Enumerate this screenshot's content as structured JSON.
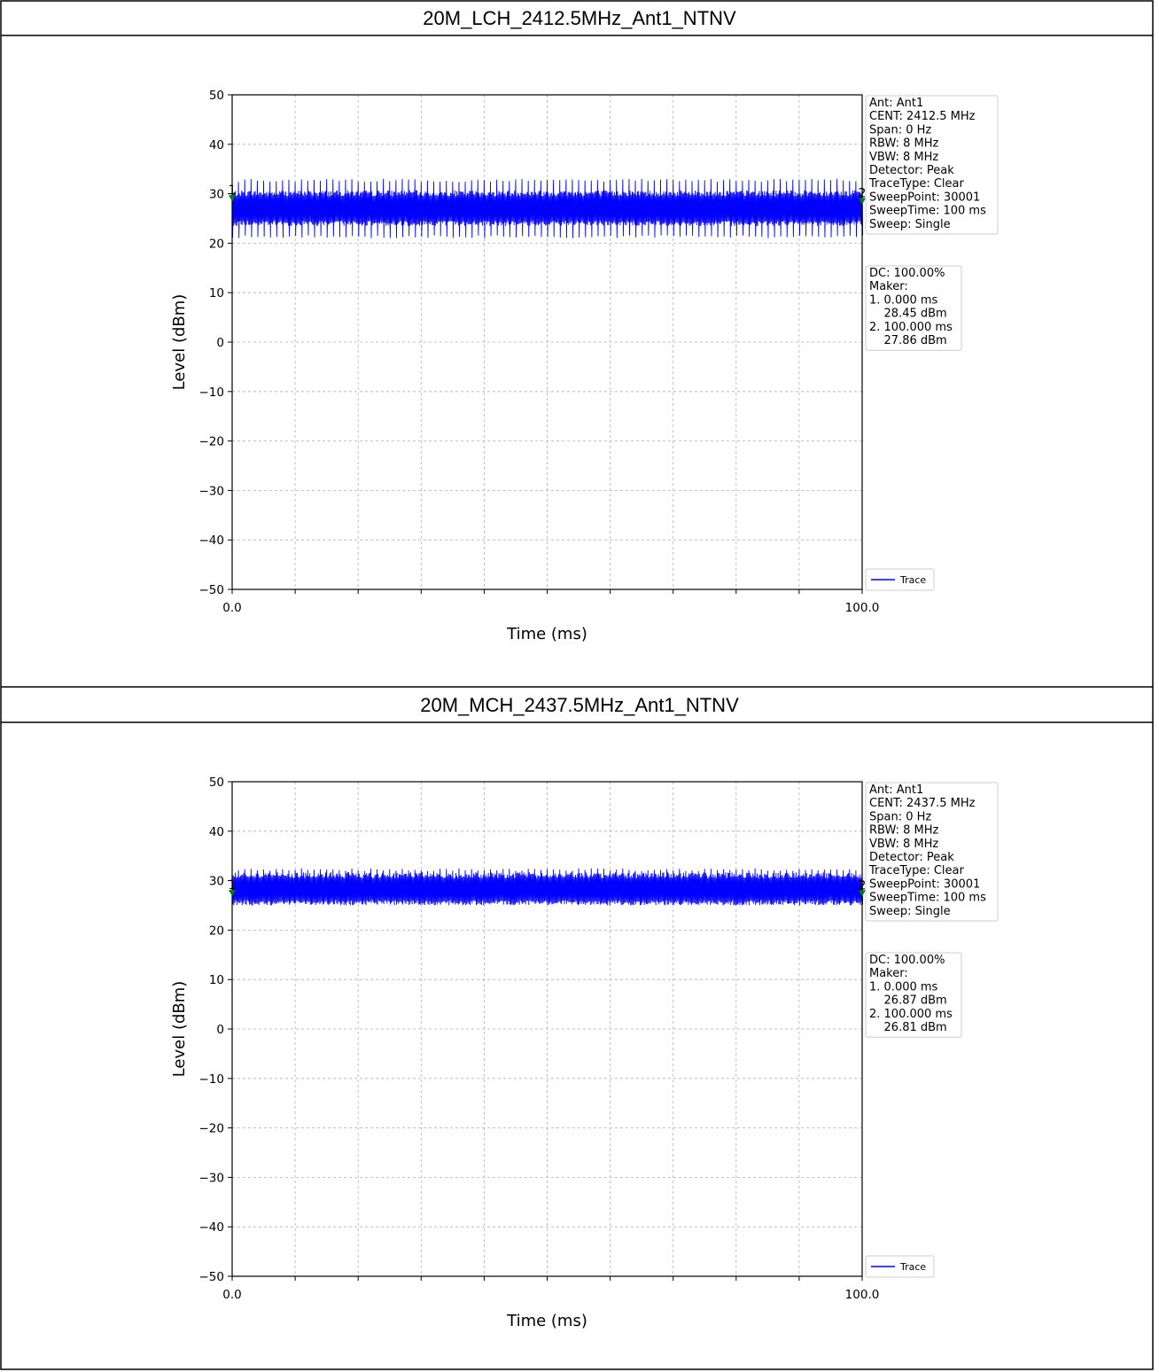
{
  "panels": [
    {
      "title": "20M_LCH_2412.5MHz_Ant1_NTNV"
    },
    {
      "title": "20M_MCH_2437.5MHz_Ant1_NTNV"
    }
  ],
  "colors": {
    "trace": "#0000ff",
    "marker": "#008000",
    "grid": "#b0b0b0"
  },
  "chart_data": [
    {
      "type": "line",
      "xlabel": "Time (ms)",
      "ylabel": "Level (dBm)",
      "xlim": [
        0.0,
        100.0
      ],
      "ylim": [
        -50,
        50
      ],
      "x_tick_labels": [
        "0.0",
        "100.0"
      ],
      "y_ticks": [
        50,
        40,
        30,
        20,
        10,
        0,
        -10,
        -20,
        -30,
        -40,
        -50
      ],
      "y_tick_labels": [
        "50",
        "40",
        "30",
        "20",
        "10",
        "0",
        "−10",
        "−20",
        "−30",
        "−40",
        "−50"
      ],
      "grid": true,
      "series": [
        {
          "name": "Trace",
          "envelope_min_dBm": 21,
          "envelope_max_dBm": 33,
          "typical_low_dBm": 24.5,
          "typical_high_dBm": 29.5,
          "burst_count": 100
        }
      ],
      "markers": [
        {
          "label": "1",
          "x": 0.0,
          "y": 28.45
        },
        {
          "label": "2",
          "x": 100.0,
          "y": 27.86
        }
      ],
      "info_box": [
        "Ant: Ant1",
        "CENT: 2412.5 MHz",
        "Span: 0 Hz",
        "RBW: 8 MHz",
        "VBW: 8 MHz",
        "Detector: Peak",
        "TraceType: Clear",
        "SweepPoint: 30001",
        "SweepTime: 100 ms",
        "Sweep: Single"
      ],
      "marker_box": [
        "DC: 100.00%",
        "Maker:",
        "1. 0.000 ms",
        "    28.45 dBm",
        "2. 100.000 ms",
        "    27.86 dBm"
      ],
      "legend": "lower-right"
    },
    {
      "type": "line",
      "xlabel": "Time (ms)",
      "ylabel": "Level (dBm)",
      "xlim": [
        0.0,
        100.0
      ],
      "ylim": [
        -50,
        50
      ],
      "x_tick_labels": [
        "0.0",
        "100.0"
      ],
      "y_ticks": [
        50,
        40,
        30,
        20,
        10,
        0,
        -10,
        -20,
        -30,
        -40,
        -50
      ],
      "y_tick_labels": [
        "50",
        "40",
        "30",
        "20",
        "10",
        "0",
        "−10",
        "−20",
        "−30",
        "−40",
        "−50"
      ],
      "grid": true,
      "series": [
        {
          "name": "Trace",
          "envelope_min_dBm": 25,
          "envelope_max_dBm": 32.5,
          "typical_low_dBm": 26,
          "typical_high_dBm": 30.5,
          "burst_count": 100
        }
      ],
      "markers": [
        {
          "label": "1",
          "x": 0.0,
          "y": 26.87
        },
        {
          "label": "2",
          "x": 100.0,
          "y": 26.81
        }
      ],
      "info_box": [
        "Ant: Ant1",
        "CENT: 2437.5 MHz",
        "Span: 0 Hz",
        "RBW: 8 MHz",
        "VBW: 8 MHz",
        "Detector: Peak",
        "TraceType: Clear",
        "SweepPoint: 30001",
        "SweepTime: 100 ms",
        "Sweep: Single"
      ],
      "marker_box": [
        "DC: 100.00%",
        "Maker:",
        "1. 0.000 ms",
        "    26.87 dBm",
        "2. 100.000 ms",
        "    26.81 dBm"
      ],
      "legend": "lower-right"
    }
  ]
}
